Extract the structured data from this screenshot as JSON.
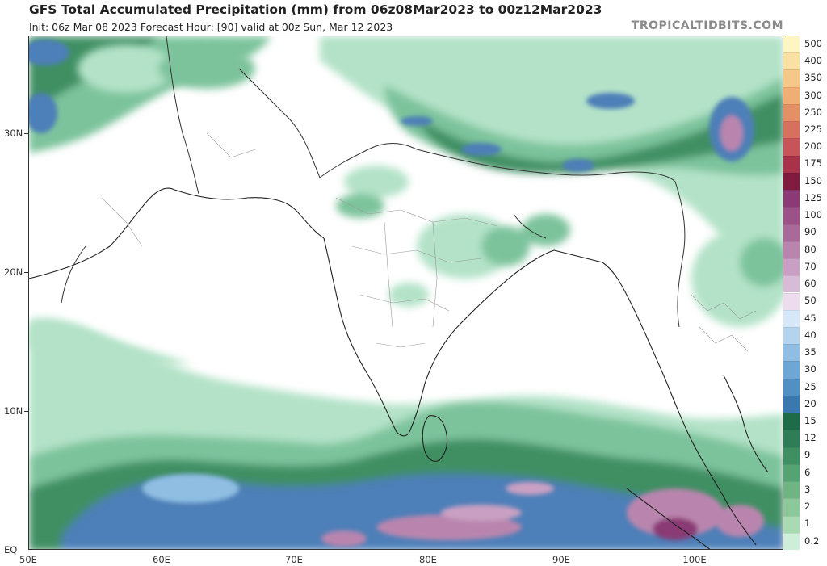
{
  "header": {
    "title": "GFS Total Accumulated Precipitation (mm) from 06z08Mar2023 to 00z12Mar2023",
    "subtitle": "Init: 06z Mar 08 2023   Forecast Hour: [90]   valid at 00z Sun, Mar 12 2023",
    "credit": "TROPICALTIDBITS.COM"
  },
  "axes": {
    "lat_labels": [
      "30N",
      "20N",
      "10N",
      "EQ"
    ],
    "lon_labels": [
      "50E",
      "60E",
      "70E",
      "80E",
      "90E",
      "100E"
    ]
  },
  "colorbar": {
    "levels": [
      "500",
      "400",
      "350",
      "300",
      "250",
      "225",
      "200",
      "175",
      "150",
      "125",
      "100",
      "90",
      "80",
      "70",
      "60",
      "50",
      "45",
      "40",
      "35",
      "30",
      "25",
      "20",
      "15",
      "12",
      "9",
      "6",
      "3",
      "2",
      "1",
      "0.2"
    ],
    "colors": [
      "#fdf6c3",
      "#f9e0a4",
      "#f5c88a",
      "#eeae74",
      "#e39066",
      "#d7705d",
      "#c75458",
      "#a8324a",
      "#801c40",
      "#8a3a74",
      "#9a5288",
      "#a96a9a",
      "#b985ae",
      "#c9a0c3",
      "#d8bcd7",
      "#ecdced",
      "#d6e8f7",
      "#b4d4ee",
      "#8fbee2",
      "#6ea7d3",
      "#5290c2",
      "#3a78ae",
      "#1e6b4a",
      "#2e7d56",
      "#3f8f63",
      "#55a272",
      "#6fb584",
      "#8cc89a",
      "#a9dbb2",
      "#cdeed8"
    ]
  },
  "legend_colors": {
    "land_border": "#333333",
    "state_border": "#999999",
    "light_green": "#b3e2c8",
    "mid_green": "#7cc39b",
    "dark_green": "#3f8f63",
    "light_blue": "#8fbee2",
    "mid_blue": "#4d7fb8",
    "purple": "#b985ae"
  }
}
